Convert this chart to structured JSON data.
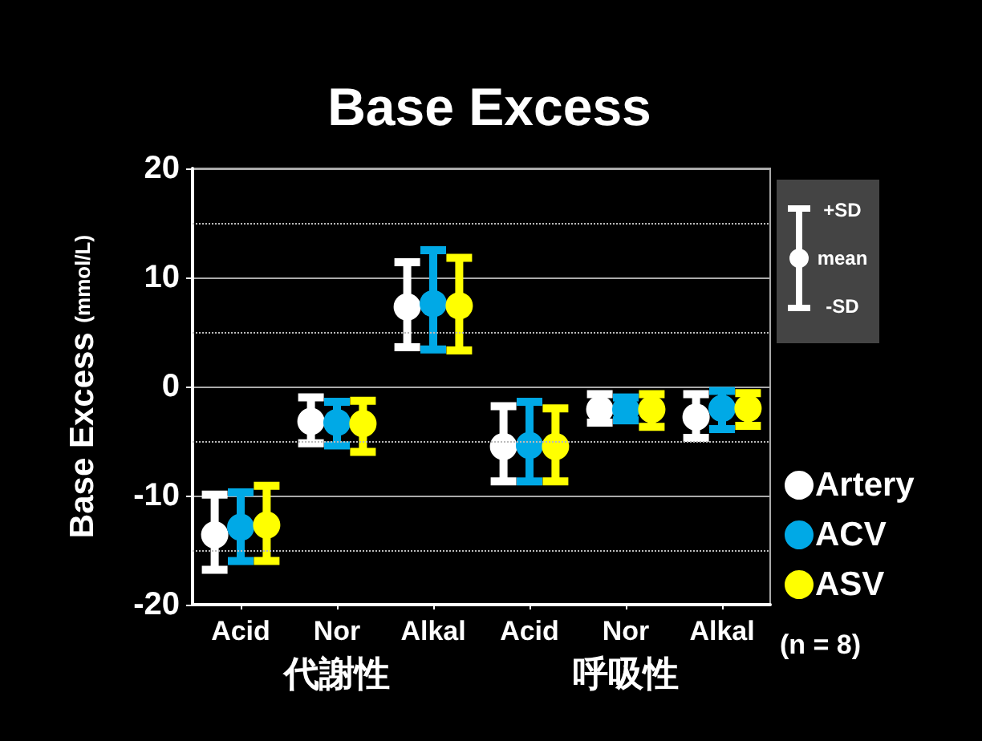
{
  "chart_data": {
    "type": "scatter",
    "title": "Base Excess",
    "ylabel": "Base Excess (mmol/L)",
    "categories": [
      "Acid",
      "Nor",
      "Alkal",
      "Acid",
      "Nor",
      "Alkal"
    ],
    "series": [
      {
        "name": "Artery",
        "color": "#ffffff",
        "values": [
          -13.6,
          -3.2,
          7.3,
          -5.5,
          -2.1,
          -2.8
        ],
        "errors": [
          [
            -16.8,
            -9.9
          ],
          [
            -5.2,
            -1.0
          ],
          [
            3.6,
            11.4
          ],
          [
            -8.7,
            -1.8
          ],
          [
            -3.3,
            -0.7
          ],
          [
            -4.7,
            -0.7
          ]
        ]
      },
      {
        "name": "ACV",
        "color": "#00a9e6",
        "values": [
          -12.9,
          -3.3,
          7.6,
          -5.4,
          -2.1,
          -2.0
        ],
        "errors": [
          [
            -16.0,
            -9.7
          ],
          [
            -5.4,
            -1.4
          ],
          [
            3.4,
            12.5
          ],
          [
            -8.7,
            -1.4
          ],
          [
            -3.1,
            -1.0
          ],
          [
            -3.9,
            -0.4
          ]
        ]
      },
      {
        "name": "ASV",
        "color": "#ffff00",
        "values": [
          -12.7,
          -3.4,
          7.4,
          -5.5,
          -2.1,
          -2.0
        ],
        "errors": [
          [
            -16.0,
            -9.1
          ],
          [
            -6.0,
            -1.3
          ],
          [
            3.3,
            11.8
          ],
          [
            -8.7,
            -2.0
          ],
          [
            -3.7,
            -0.7
          ],
          [
            -3.6,
            -0.6
          ]
        ]
      }
    ],
    "ylim": [
      -20,
      20
    ],
    "yticks": [
      -20,
      -10,
      0,
      10,
      20
    ],
    "grid": "y",
    "marker": "circle",
    "legend": "right",
    "ref_lines": [
      {
        "axis": "y",
        "value": 15,
        "line_style": "dotted"
      },
      {
        "axis": "y",
        "value": 5,
        "line_style": "dotted"
      },
      {
        "axis": "y",
        "value": -5,
        "line_style": "dotted"
      },
      {
        "axis": "y",
        "value": -15,
        "line_style": "dotted"
      }
    ],
    "annotations": [
      "+SD",
      "mean",
      "-SD",
      "(n = 8)",
      "代謝性",
      "呼吸性"
    ]
  }
}
